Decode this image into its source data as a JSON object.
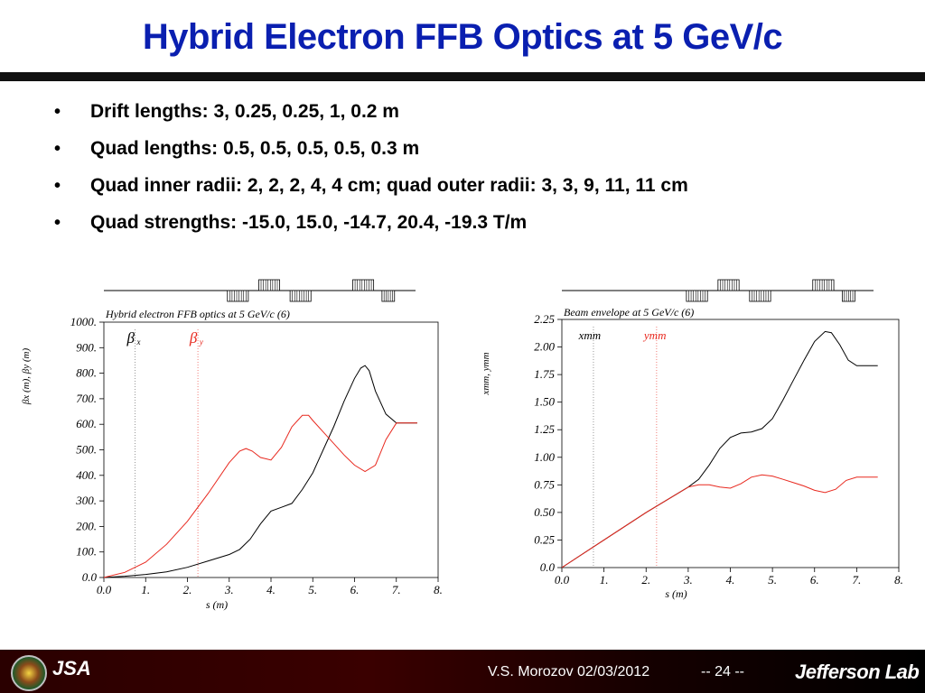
{
  "title": "Hybrid Electron FFB Optics at 5 GeV/c",
  "bullets": [
    "Drift lengths: 3, 0.25, 0.25, 1, 0.2 m",
    "Quad lengths: 0.5, 0.5, 0.5, 0.5, 0.3 m",
    "Quad inner radii: 2, 2, 2, 4, 4 cm; quad outer radii: 3, 3, 9, 11, 11 cm",
    "Quad strengths: -15.0, 15.0, -14.7, 20.4, -19.3 T/m"
  ],
  "bullet_symbol": "•",
  "footer": {
    "author_date": "V.S. Morozov 02/03/2012",
    "page": "-- 24 --",
    "lab": "Jefferson Lab",
    "jsa": "JSA"
  },
  "chart_data": [
    {
      "type": "line",
      "title": "Hybrid electron FFB optics at 5 GeV/c (6)",
      "xlabel": "s (m)",
      "ylabel": "βx (m), βy (m)",
      "xlim": [
        0,
        8
      ],
      "ylim": [
        0,
        1000
      ],
      "x_ticks": [
        "0.0",
        "1.",
        "2.",
        "3.",
        "4.",
        "5.",
        "6.",
        "7.",
        "8."
      ],
      "y_ticks": [
        "0.0",
        "100.",
        "200.",
        "300.",
        "400.",
        "500.",
        "600.",
        "700.",
        "800.",
        "900.",
        "1000."
      ],
      "legend": [
        {
          "symbol": "β",
          "sub": "x",
          "color": "#000000"
        },
        {
          "symbol": "β",
          "sub": "y",
          "color": "#e8291f"
        }
      ],
      "marker_lines_x": [
        0.75,
        2.25
      ],
      "series": [
        {
          "color": "#000000",
          "x": [
            0,
            0.5,
            1,
            1.5,
            2,
            2.5,
            3,
            3.25,
            3.5,
            3.75,
            4,
            4.25,
            4.5,
            4.75,
            5,
            5.25,
            5.5,
            5.75,
            6,
            6.15,
            6.25,
            6.35,
            6.5,
            6.75,
            7,
            7.25,
            7.5
          ],
          "y": [
            0,
            5,
            12,
            22,
            40,
            65,
            90,
            110,
            150,
            210,
            260,
            275,
            290,
            345,
            410,
            500,
            590,
            690,
            780,
            820,
            830,
            810,
            730,
            640,
            605,
            605,
            605
          ]
        },
        {
          "color": "#e8291f",
          "x": [
            0,
            0.5,
            1,
            1.5,
            2,
            2.5,
            3,
            3.25,
            3.4,
            3.55,
            3.75,
            4,
            4.25,
            4.5,
            4.75,
            4.9,
            5,
            5.25,
            5.5,
            5.75,
            6,
            6.25,
            6.5,
            6.75,
            7,
            7.25,
            7.5
          ],
          "y": [
            0,
            20,
            60,
            130,
            220,
            330,
            450,
            495,
            505,
            495,
            470,
            460,
            510,
            590,
            635,
            635,
            615,
            570,
            525,
            480,
            440,
            415,
            440,
            540,
            605,
            605,
            605
          ]
        }
      ],
      "magnets": [
        {
          "s0": 3.0,
          "s1": 3.5,
          "side": "lower"
        },
        {
          "s0": 3.75,
          "s1": 4.25,
          "side": "upper"
        },
        {
          "s0": 4.5,
          "s1": 5.0,
          "side": "lower"
        },
        {
          "s0": 6.0,
          "s1": 6.5,
          "side": "upper"
        },
        {
          "s0": 6.7,
          "s1": 7.0,
          "side": "lower"
        }
      ]
    },
    {
      "type": "line",
      "title": "Beam envelope at 5 GeV/c (6)",
      "xlabel": "s (m)",
      "ylabel": "xmm, ymm",
      "xlim": [
        0,
        8
      ],
      "ylim": [
        0,
        2.25
      ],
      "x_ticks": [
        "0.0",
        "1.",
        "2.",
        "3.",
        "4.",
        "5.",
        "6.",
        "7.",
        "8."
      ],
      "y_ticks": [
        "0.0",
        "0.25",
        "0.50",
        "0.75",
        "1.00",
        "1.25",
        "1.50",
        "1.75",
        "2.00",
        "2.25"
      ],
      "legend": [
        {
          "symbol": "xmm",
          "sub": "",
          "color": "#000000"
        },
        {
          "symbol": "ymm",
          "sub": "",
          "color": "#e8291f"
        }
      ],
      "marker_lines_x": [
        0.75,
        2.25
      ],
      "series": [
        {
          "color": "#000000",
          "x": [
            0,
            1,
            2,
            3,
            3.25,
            3.5,
            3.75,
            4,
            4.25,
            4.5,
            4.75,
            5,
            5.25,
            5.5,
            5.75,
            6,
            6.25,
            6.4,
            6.6,
            6.8,
            7,
            7.25,
            7.5
          ],
          "y": [
            0,
            0.25,
            0.5,
            0.73,
            0.8,
            0.93,
            1.08,
            1.18,
            1.22,
            1.23,
            1.26,
            1.35,
            1.52,
            1.7,
            1.88,
            2.05,
            2.14,
            2.13,
            2.02,
            1.88,
            1.83,
            1.83,
            1.83
          ]
        },
        {
          "color": "#e8291f",
          "x": [
            0,
            1,
            2,
            3,
            3.25,
            3.5,
            3.75,
            4,
            4.25,
            4.5,
            4.75,
            5,
            5.25,
            5.5,
            5.75,
            6,
            6.25,
            6.5,
            6.75,
            7,
            7.25,
            7.5
          ],
          "y": [
            0,
            0.25,
            0.5,
            0.73,
            0.75,
            0.75,
            0.73,
            0.72,
            0.76,
            0.82,
            0.84,
            0.83,
            0.8,
            0.77,
            0.74,
            0.7,
            0.68,
            0.71,
            0.79,
            0.82,
            0.82,
            0.82
          ]
        }
      ],
      "magnets": [
        {
          "s0": 3.0,
          "s1": 3.5,
          "side": "lower"
        },
        {
          "s0": 3.75,
          "s1": 4.25,
          "side": "upper"
        },
        {
          "s0": 4.5,
          "s1": 5.0,
          "side": "lower"
        },
        {
          "s0": 6.0,
          "s1": 6.5,
          "side": "upper"
        },
        {
          "s0": 6.7,
          "s1": 7.0,
          "side": "lower"
        }
      ]
    }
  ]
}
